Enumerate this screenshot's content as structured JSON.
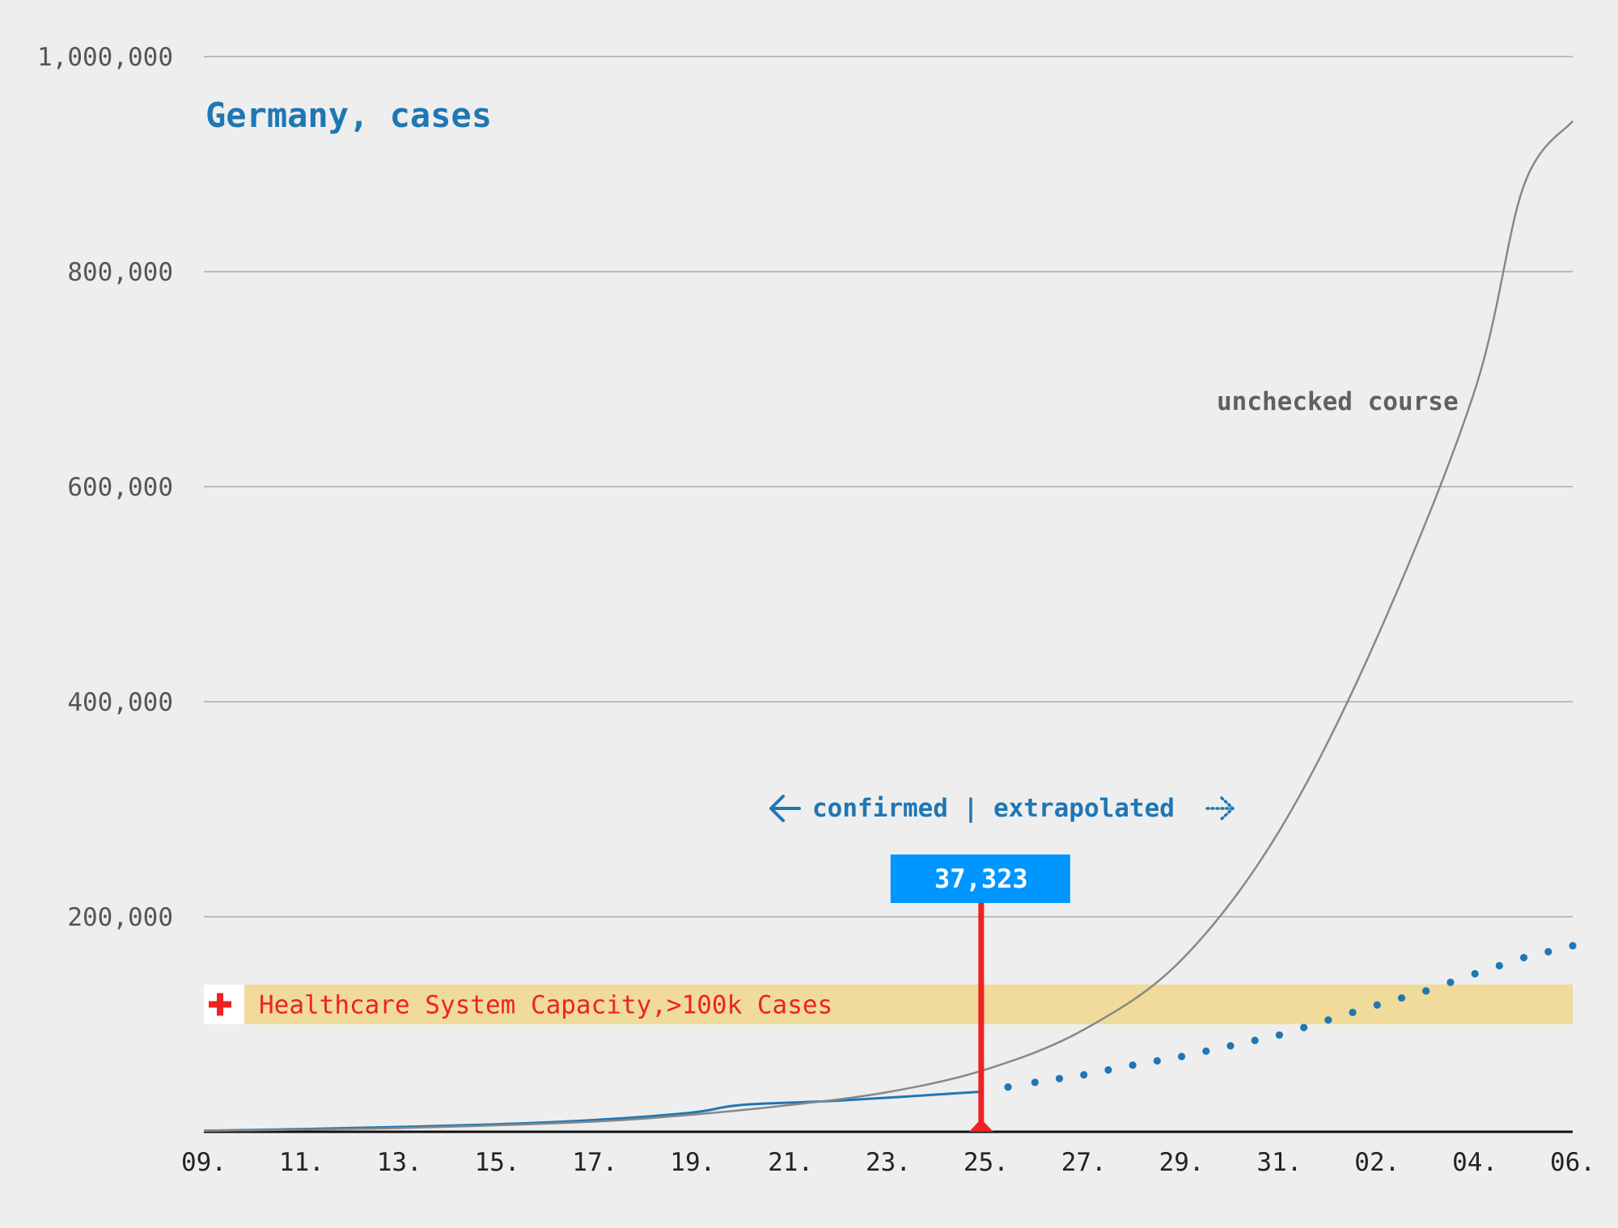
{
  "chart_data": {
    "type": "line",
    "title": "Germany, cases",
    "x_ticks": [
      "09.",
      "11.",
      "13.",
      "15.",
      "17.",
      "19.",
      "21.",
      "23.",
      "25.",
      "27.",
      "29.",
      "31.",
      "02.",
      "04.",
      "06."
    ],
    "y_ticks": [
      "1,000,000",
      "800,000",
      "600,000",
      "400,000",
      "200,000"
    ],
    "ylim": [
      0,
      1000000
    ],
    "grid": true,
    "series": [
      {
        "name": "",
        "style": "solid",
        "color": "#1f77b4",
        "x": [
          0,
          2,
          4,
          6,
          8,
          10,
          11,
          13,
          15.9
        ],
        "y": [
          1000,
          2500,
          4500,
          7000,
          11000,
          18000,
          25000,
          29000,
          37323
        ]
      },
      {
        "name": "",
        "style": "dotted",
        "color": "#1f77b4",
        "x": [
          15.9,
          17,
          18,
          19,
          20,
          21,
          22,
          23,
          24,
          25,
          26,
          27,
          28
        ],
        "y": [
          37323,
          46000,
          53000,
          62000,
          70000,
          80000,
          90000,
          104000,
          118000,
          131000,
          147000,
          162000,
          173000
        ]
      },
      {
        "name": "unchecked course",
        "style": "solid",
        "color": "#888888",
        "x": [
          0,
          4,
          8,
          10,
          12,
          14,
          16,
          18,
          20,
          22,
          24,
          26,
          27,
          28
        ],
        "y": [
          1000,
          3500,
          9500,
          16000,
          25000,
          37000,
          58000,
          95000,
          160000,
          280000,
          460000,
          690000,
          880000,
          940000
        ]
      }
    ],
    "annotations": {
      "unchecked_label": "unchecked course",
      "divider_label": "confirmed | extrapolated",
      "current_value": "37,323",
      "current_x": 15.9,
      "band_label": "Healthcare System Capacity,>100k Cases",
      "band_range": [
        100000,
        137000
      ]
    },
    "colors": {
      "confirmed": "#1f77b4",
      "unchecked": "#888888",
      "marker": "#ee2222",
      "value_box": "#0096ff",
      "band": "#f0d890"
    }
  }
}
